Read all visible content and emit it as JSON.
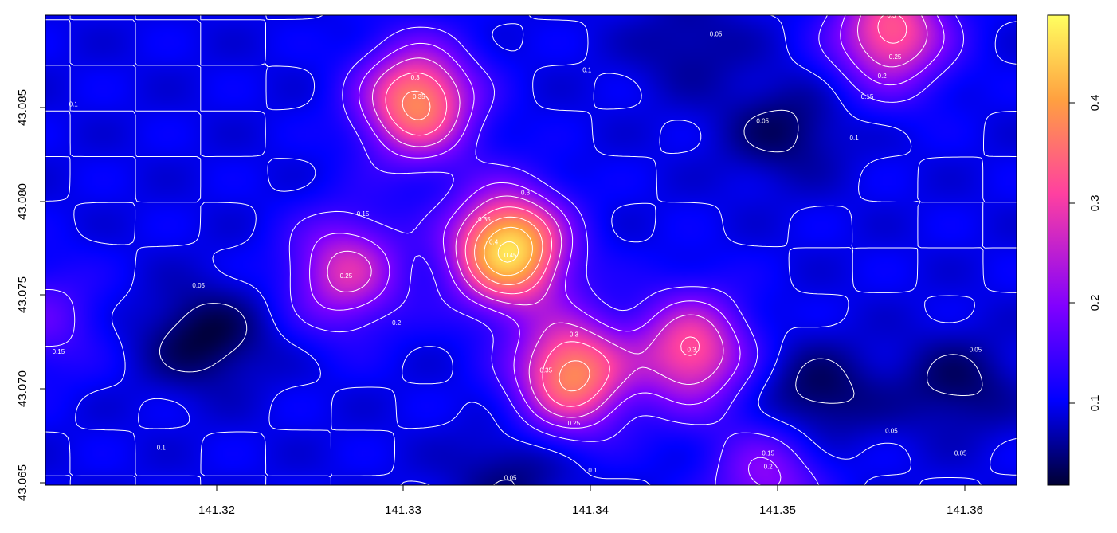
{
  "chart_data": {
    "type": "heatmap",
    "title": "",
    "xlabel": "",
    "ylabel": "",
    "xlim": [
      141.311,
      141.363
    ],
    "ylim": [
      43.0647,
      43.0896
    ],
    "x_ticks": [
      "141.32",
      "141.33",
      "141.34",
      "141.35",
      "141.36"
    ],
    "x_tick_values": [
      141.32,
      141.33,
      141.34,
      141.35,
      141.36
    ],
    "y_ticks": [
      "43.065",
      "43.070",
      "43.075",
      "43.080",
      "43.085"
    ],
    "y_tick_values": [
      43.065,
      43.07,
      43.075,
      43.08,
      43.085
    ],
    "colorbar": {
      "range": [
        0.015,
        0.485
      ],
      "ticks": [
        "0.1",
        "0.2",
        "0.3",
        "0.4"
      ],
      "tick_values": [
        0.1,
        0.2,
        0.3,
        0.4
      ],
      "colors": [
        "#000033",
        "#0000ff",
        "#8000ff",
        "#ff40a0",
        "#ffa040",
        "#ffff60"
      ]
    },
    "base_value": 0.1,
    "hotspots": [
      {
        "x": 141.3358,
        "y": 43.0772,
        "peak": 0.46
      },
      {
        "x": 141.3392,
        "y": 43.0706,
        "peak": 0.37
      },
      {
        "x": 141.3309,
        "y": 43.085,
        "peak": 0.37
      },
      {
        "x": 141.3563,
        "y": 43.0887,
        "peak": 0.32
      },
      {
        "x": 141.3456,
        "y": 43.0718,
        "peak": 0.31
      },
      {
        "x": 141.3271,
        "y": 43.076,
        "peak": 0.27
      },
      {
        "x": 141.3496,
        "y": 43.065,
        "peak": 0.21
      },
      {
        "x": 141.311,
        "y": 43.0735,
        "peak": 0.17
      }
    ],
    "lows": [
      {
        "x": 141.3195,
        "y": 43.0725,
        "value": 0.02
      },
      {
        "x": 141.3523,
        "y": 43.0695,
        "value": 0.03
      },
      {
        "x": 141.3598,
        "y": 43.07,
        "value": 0.04
      },
      {
        "x": 141.3505,
        "y": 43.0835,
        "value": 0.04
      },
      {
        "x": 141.3455,
        "y": 43.088,
        "value": 0.06
      },
      {
        "x": 141.336,
        "y": 43.0652,
        "value": 0.05
      }
    ],
    "contour_levels": [
      0.05,
      0.1,
      0.15,
      0.2,
      0.25,
      0.3,
      0.35,
      0.4,
      0.45
    ],
    "contour_labels": [
      {
        "text": "0.1",
        "x": 141.3125,
        "y": 43.0849
      },
      {
        "text": "0.05",
        "x": 141.3469,
        "y": 43.0886
      },
      {
        "text": "0.1",
        "x": 141.34,
        "y": 43.0867
      },
      {
        "text": "0.3",
        "x": 141.3308,
        "y": 43.0863
      },
      {
        "text": "0.35",
        "x": 141.331,
        "y": 43.0853
      },
      {
        "text": "0.05",
        "x": 141.3494,
        "y": 43.084
      },
      {
        "text": "0.3",
        "x": 141.3563,
        "y": 43.0896
      },
      {
        "text": "0.25",
        "x": 141.3565,
        "y": 43.0874
      },
      {
        "text": "0.2",
        "x": 141.3558,
        "y": 43.0864
      },
      {
        "text": "0.15",
        "x": 141.355,
        "y": 43.0853
      },
      {
        "text": "0.1",
        "x": 141.3543,
        "y": 43.0831
      },
      {
        "text": "0.15",
        "x": 141.328,
        "y": 43.0791
      },
      {
        "text": "0.3",
        "x": 141.3367,
        "y": 43.0802
      },
      {
        "text": "0.35",
        "x": 141.3345,
        "y": 43.0788
      },
      {
        "text": "0.4",
        "x": 141.335,
        "y": 43.0776
      },
      {
        "text": "0.45",
        "x": 141.3359,
        "y": 43.0769
      },
      {
        "text": "0.25",
        "x": 141.3271,
        "y": 43.0758
      },
      {
        "text": "0.05",
        "x": 141.3192,
        "y": 43.0753
      },
      {
        "text": "0.2",
        "x": 141.3298,
        "y": 43.0733
      },
      {
        "text": "0.3",
        "x": 141.3393,
        "y": 43.0727
      },
      {
        "text": "0.3",
        "x": 141.3456,
        "y": 43.0719
      },
      {
        "text": "0.35",
        "x": 141.3378,
        "y": 43.0708
      },
      {
        "text": "0.15",
        "x": 141.3117,
        "y": 43.0718
      },
      {
        "text": "0.25",
        "x": 141.3393,
        "y": 43.068
      },
      {
        "text": "0.05",
        "x": 141.3608,
        "y": 43.0719
      },
      {
        "text": "0.05",
        "x": 141.3563,
        "y": 43.0676
      },
      {
        "text": "0.1",
        "x": 141.3172,
        "y": 43.0667
      },
      {
        "text": "0.15",
        "x": 141.3497,
        "y": 43.0664
      },
      {
        "text": "0.2",
        "x": 141.3497,
        "y": 43.0657
      },
      {
        "text": "0.1",
        "x": 141.3403,
        "y": 43.0655
      },
      {
        "text": "0.05",
        "x": 141.3359,
        "y": 43.0651
      },
      {
        "text": "0.05",
        "x": 141.36,
        "y": 43.0664
      }
    ]
  }
}
